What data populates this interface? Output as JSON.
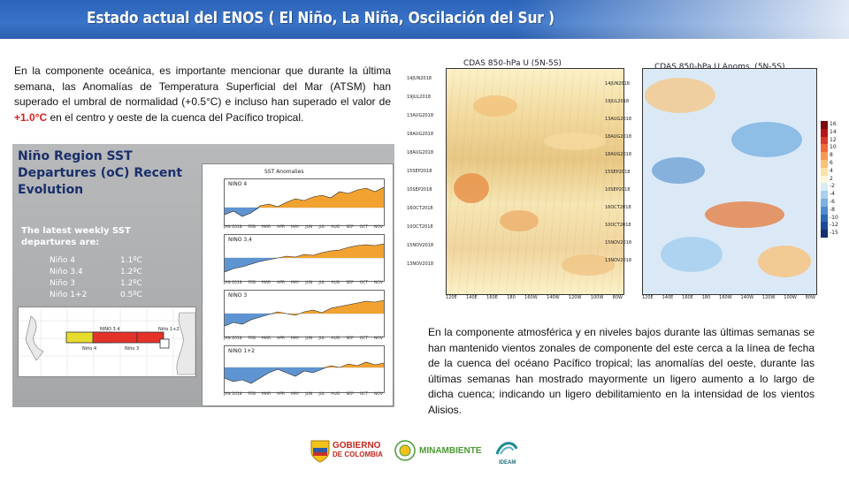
{
  "title": "Estado actual del ENOS ( El Niño, La Niña, Oscilación del Sur )",
  "paragraph_oceanic": {
    "before": "En la componente oceánica, es importante mencionar que durante la última semana, las Anomalías de Temperatura Superficial del Mar (ATSM) han superado el umbral de normalidad (+0.5°C) e incluso han superado el valor de ",
    "highlight": "+1.0°C",
    "after": " en el centro y oeste de la cuenca del Pacífico tropical."
  },
  "paragraph_atmospheric": "En la componente atmosférica y en niveles bajos durante las últimas semanas se han mantenido vientos zonales de componente del este cerca a la línea de fecha de la cuenca del océano Pacífico tropical; las anomalías del oeste, durante las últimas semanas han mostrado mayormente un ligero aumento a lo largo de dicha cuenca; indicando un ligero debilitamiento en la intensidad de los vientos Alisios.",
  "nino_panel": {
    "title_lines": [
      "Niño Region SST",
      "Departures (oC) Recent",
      "Evolution"
    ],
    "subtitle_lines": [
      "The latest weekly SST",
      "departures are:"
    ],
    "rows": [
      {
        "label": "Niño 4",
        "value": "1.1ºC"
      },
      {
        "label": "Niño 3.4",
        "value": "1.2ºC"
      },
      {
        "label": "Niño 3",
        "value": "1.2ºC"
      },
      {
        "label": "Niño 1+2",
        "value": "0.5ºC"
      }
    ],
    "chart_header": "SST Anomalies",
    "mini_charts": [
      {
        "label": "NINO 4",
        "yticks": [
          "1.2",
          "0.9",
          "0.6",
          "0.3",
          "0",
          "-0.3",
          "-0.6"
        ]
      },
      {
        "label": "NINO 3.4",
        "yticks": [
          "1.2",
          "0.9",
          "0.6",
          "0.3",
          "0",
          "-0.3",
          "-0.6",
          "-0.9",
          "-1.2"
        ]
      },
      {
        "label": "NINO 3",
        "yticks": [
          "1.5",
          "1",
          "0.5",
          "0",
          "-0.5",
          "-1",
          "-1.5"
        ]
      },
      {
        "label": "NINO 1+2",
        "yticks": [
          "1.5",
          "0.5",
          "0",
          "-0.5",
          "-1",
          "-1.5"
        ]
      }
    ],
    "months": [
      "JAN 2018",
      "FEB",
      "MAR",
      "APR",
      "MAY",
      "JUN",
      "JUL",
      "AUG",
      "SEP",
      "OCT",
      "NOV"
    ],
    "map_labels": {
      "nino4": "Niño 4",
      "nino34": "NIÑO 3.4",
      "nino3": "Niño 3",
      "nino12": "Niño 1+2"
    }
  },
  "hovmoller": {
    "left_title": "CDAS 850-hPa U (5N-5S)",
    "right_title": "CDAS 850-hPa U Anoms. (5N-5S)",
    "dates": [
      "14JUN2018",
      "19JUL2018",
      "13AUG2018",
      "18AUG2018",
      "18AUG2018",
      "15SEP2018",
      "10SEP2018",
      "16OCT2018",
      "10OCT2018",
      "15NOV2018",
      "13NOV2018"
    ],
    "longitudes": [
      "120E",
      "140E",
      "160E",
      "180",
      "160W",
      "140W",
      "120W",
      "100W",
      "80W"
    ],
    "colorbar": [
      "16",
      "14",
      "12",
      "10",
      "8",
      "6",
      "4",
      "2",
      "-2",
      "-4",
      "-6",
      "-8",
      "-10",
      "-12",
      "-15"
    ],
    "colorbar_colors": [
      "#7a0b0b",
      "#b3171a",
      "#d93b2a",
      "#ee6a3b",
      "#f59a55",
      "#f8c27a",
      "#fbe3a8",
      "#fdf6d9",
      "#d9ecf7",
      "#a9d0ee",
      "#7bb1e1",
      "#4d8ccc",
      "#2f69b4",
      "#1e4a94",
      "#14306e"
    ]
  },
  "logos": {
    "gobierno": [
      "GOBIERNO",
      "DE COLOMBIA"
    ],
    "minambiente": "MINAMBIENTE",
    "ideam": "IDEAM"
  }
}
